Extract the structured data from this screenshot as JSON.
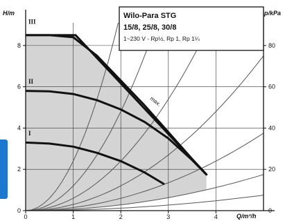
{
  "chart_data": {
    "type": "line",
    "title_lines": [
      "Wilo-Para STG",
      "15/8, 25/8, 30/8",
      "1~230 V - Rp½, Rp 1, Rp 1¼"
    ],
    "xlabel": "Q/m³/h",
    "ylabel": "H/m",
    "ylabel_right": "p/kPa",
    "xlim": [
      0,
      5
    ],
    "ylim": [
      0,
      9.1
    ],
    "x_ticks": [
      0,
      1,
      2,
      3,
      4
    ],
    "y_ticks": [
      0,
      2,
      4,
      6,
      8
    ],
    "y_ticks_right": [
      0,
      20,
      40,
      60,
      80
    ],
    "grid": true,
    "max_curve": {
      "name": "max.",
      "x": [
        0,
        1.05,
        3.8
      ],
      "y": [
        8.5,
        8.5,
        1.75
      ]
    },
    "series": [
      {
        "name": "III",
        "x": [
          0,
          0.5,
          1.0,
          1.5,
          2.0,
          2.5,
          3.0,
          3.5,
          3.8
        ],
        "y": [
          8.5,
          8.5,
          8.4,
          7.5,
          6.3,
          5.1,
          3.8,
          2.5,
          1.75
        ]
      },
      {
        "name": "II",
        "x": [
          0,
          0.5,
          1.0,
          1.5,
          2.0,
          2.5,
          3.0,
          3.5,
          3.8
        ],
        "y": [
          5.8,
          5.78,
          5.65,
          5.35,
          4.9,
          4.3,
          3.5,
          2.45,
          1.75
        ]
      },
      {
        "name": "I",
        "x": [
          0,
          0.5,
          1.0,
          1.5,
          2.0,
          2.5,
          2.9
        ],
        "y": [
          3.3,
          3.25,
          3.1,
          2.8,
          2.4,
          1.85,
          1.3
        ]
      }
    ],
    "system_curves": {
      "type": "parabola",
      "coefficients": [
        0.03,
        0.07,
        0.15,
        0.3,
        0.6,
        1.2,
        2.4
      ]
    },
    "colors": {
      "shade": "#d4d4d4",
      "curves": "#111111",
      "system_curves": "#555555",
      "accent": "#1a78d0"
    }
  }
}
